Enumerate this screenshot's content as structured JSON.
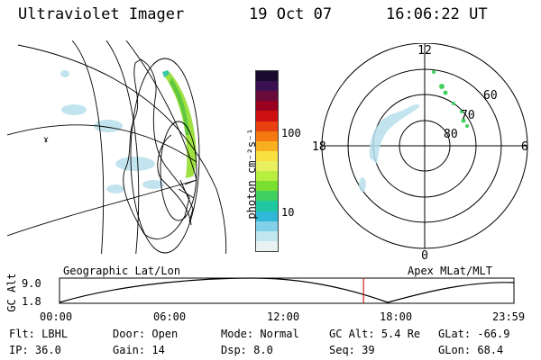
{
  "header": {
    "instrument": "Ultraviolet Imager",
    "date": "19 Oct 07",
    "time": "16:06:22 UT"
  },
  "colorbar": {
    "unit_label": "photon cm⁻²s⁻¹",
    "tick_labels": [
      "100",
      "10"
    ],
    "colors": [
      "#1a0a2e",
      "#3b1050",
      "#6a0a3a",
      "#9a0020",
      "#cc1010",
      "#e84010",
      "#f47a10",
      "#f8b020",
      "#f8e040",
      "#e8f060",
      "#b8ee40",
      "#7ae030",
      "#40d060",
      "#20c8a0",
      "#30b8d8",
      "#80d0e8",
      "#c0e6ee",
      "#e8f2f2"
    ]
  },
  "polar_plot": {
    "mlt_labels": {
      "top": "12",
      "left": "18",
      "right": "6",
      "bottom": "0"
    },
    "lat_labels": [
      "60",
      "70",
      "80"
    ]
  },
  "markers": {
    "geo_small": "ɤ"
  },
  "timeline": {
    "left_label": "Geographic Lat/Lon",
    "right_label": "Apex MLat/MLT",
    "axis_label": "GC Alt",
    "y_max": "9.0",
    "y_min": "1.8",
    "x_ticks": [
      "00:00",
      "06:00",
      "12:00",
      "18:00",
      "23:59"
    ],
    "current_time_fraction": 0.669
  },
  "status": {
    "row1": [
      {
        "key": "Flt:",
        "value": "LBHL"
      },
      {
        "key": "Door:",
        "value": "Open"
      },
      {
        "key": "Mode:",
        "value": "Normal"
      },
      {
        "key": "GC Alt:",
        "value": "5.4 Re"
      },
      {
        "key": "GLat:",
        "value": "-66.9"
      }
    ],
    "row2": [
      {
        "key": "IP:",
        "value": "36.0"
      },
      {
        "key": "Gain:",
        "value": "14"
      },
      {
        "key": "Dsp:",
        "value": "8.0"
      },
      {
        "key": "Seq:",
        "value": "39"
      },
      {
        "key": "GLon:",
        "value": "68.4"
      }
    ]
  }
}
